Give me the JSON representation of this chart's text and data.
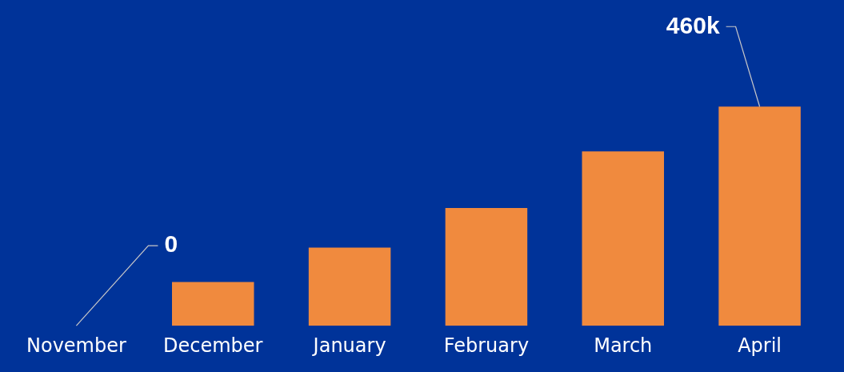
{
  "chart_data": {
    "type": "bar",
    "categories": [
      "November",
      "December",
      "January",
      "February",
      "March",
      "April"
    ],
    "values": [
      0,
      92000,
      164000,
      247000,
      366000,
      460000
    ],
    "value_labels": [
      "0",
      null,
      null,
      null,
      null,
      "460k"
    ],
    "color": "#f08a3e",
    "grid": false,
    "legend": false
  }
}
